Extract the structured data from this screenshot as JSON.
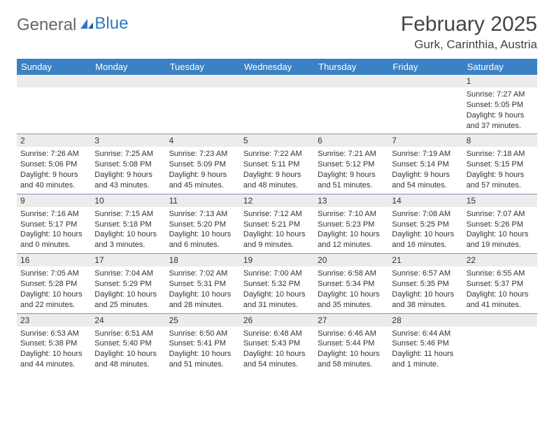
{
  "brand": {
    "part1": "General",
    "part2": "Blue"
  },
  "title": "February 2025",
  "location": "Gurk, Carinthia, Austria",
  "colors": {
    "header_bg": "#3b82c4",
    "header_text": "#ffffff",
    "daynum_bg": "#ececec",
    "row_border": "#7a94b0",
    "brand_gray": "#666666",
    "brand_blue": "#2f79c2",
    "text": "#333333",
    "background": "#ffffff"
  },
  "font": {
    "family": "Arial",
    "title_size_pt": 22,
    "location_size_pt": 13,
    "header_size_pt": 10,
    "body_size_pt": 8
  },
  "day_names": [
    "Sunday",
    "Monday",
    "Tuesday",
    "Wednesday",
    "Thursday",
    "Friday",
    "Saturday"
  ],
  "weeks": [
    [
      {
        "n": "",
        "sr": "",
        "ss": "",
        "dl": ""
      },
      {
        "n": "",
        "sr": "",
        "ss": "",
        "dl": ""
      },
      {
        "n": "",
        "sr": "",
        "ss": "",
        "dl": ""
      },
      {
        "n": "",
        "sr": "",
        "ss": "",
        "dl": ""
      },
      {
        "n": "",
        "sr": "",
        "ss": "",
        "dl": ""
      },
      {
        "n": "",
        "sr": "",
        "ss": "",
        "dl": ""
      },
      {
        "n": "1",
        "sr": "Sunrise: 7:27 AM",
        "ss": "Sunset: 5:05 PM",
        "dl": "Daylight: 9 hours and 37 minutes."
      }
    ],
    [
      {
        "n": "2",
        "sr": "Sunrise: 7:26 AM",
        "ss": "Sunset: 5:06 PM",
        "dl": "Daylight: 9 hours and 40 minutes."
      },
      {
        "n": "3",
        "sr": "Sunrise: 7:25 AM",
        "ss": "Sunset: 5:08 PM",
        "dl": "Daylight: 9 hours and 43 minutes."
      },
      {
        "n": "4",
        "sr": "Sunrise: 7:23 AM",
        "ss": "Sunset: 5:09 PM",
        "dl": "Daylight: 9 hours and 45 minutes."
      },
      {
        "n": "5",
        "sr": "Sunrise: 7:22 AM",
        "ss": "Sunset: 5:11 PM",
        "dl": "Daylight: 9 hours and 48 minutes."
      },
      {
        "n": "6",
        "sr": "Sunrise: 7:21 AM",
        "ss": "Sunset: 5:12 PM",
        "dl": "Daylight: 9 hours and 51 minutes."
      },
      {
        "n": "7",
        "sr": "Sunrise: 7:19 AM",
        "ss": "Sunset: 5:14 PM",
        "dl": "Daylight: 9 hours and 54 minutes."
      },
      {
        "n": "8",
        "sr": "Sunrise: 7:18 AM",
        "ss": "Sunset: 5:15 PM",
        "dl": "Daylight: 9 hours and 57 minutes."
      }
    ],
    [
      {
        "n": "9",
        "sr": "Sunrise: 7:16 AM",
        "ss": "Sunset: 5:17 PM",
        "dl": "Daylight: 10 hours and 0 minutes."
      },
      {
        "n": "10",
        "sr": "Sunrise: 7:15 AM",
        "ss": "Sunset: 5:18 PM",
        "dl": "Daylight: 10 hours and 3 minutes."
      },
      {
        "n": "11",
        "sr": "Sunrise: 7:13 AM",
        "ss": "Sunset: 5:20 PM",
        "dl": "Daylight: 10 hours and 6 minutes."
      },
      {
        "n": "12",
        "sr": "Sunrise: 7:12 AM",
        "ss": "Sunset: 5:21 PM",
        "dl": "Daylight: 10 hours and 9 minutes."
      },
      {
        "n": "13",
        "sr": "Sunrise: 7:10 AM",
        "ss": "Sunset: 5:23 PM",
        "dl": "Daylight: 10 hours and 12 minutes."
      },
      {
        "n": "14",
        "sr": "Sunrise: 7:08 AM",
        "ss": "Sunset: 5:25 PM",
        "dl": "Daylight: 10 hours and 16 minutes."
      },
      {
        "n": "15",
        "sr": "Sunrise: 7:07 AM",
        "ss": "Sunset: 5:26 PM",
        "dl": "Daylight: 10 hours and 19 minutes."
      }
    ],
    [
      {
        "n": "16",
        "sr": "Sunrise: 7:05 AM",
        "ss": "Sunset: 5:28 PM",
        "dl": "Daylight: 10 hours and 22 minutes."
      },
      {
        "n": "17",
        "sr": "Sunrise: 7:04 AM",
        "ss": "Sunset: 5:29 PM",
        "dl": "Daylight: 10 hours and 25 minutes."
      },
      {
        "n": "18",
        "sr": "Sunrise: 7:02 AM",
        "ss": "Sunset: 5:31 PM",
        "dl": "Daylight: 10 hours and 28 minutes."
      },
      {
        "n": "19",
        "sr": "Sunrise: 7:00 AM",
        "ss": "Sunset: 5:32 PM",
        "dl": "Daylight: 10 hours and 31 minutes."
      },
      {
        "n": "20",
        "sr": "Sunrise: 6:58 AM",
        "ss": "Sunset: 5:34 PM",
        "dl": "Daylight: 10 hours and 35 minutes."
      },
      {
        "n": "21",
        "sr": "Sunrise: 6:57 AM",
        "ss": "Sunset: 5:35 PM",
        "dl": "Daylight: 10 hours and 38 minutes."
      },
      {
        "n": "22",
        "sr": "Sunrise: 6:55 AM",
        "ss": "Sunset: 5:37 PM",
        "dl": "Daylight: 10 hours and 41 minutes."
      }
    ],
    [
      {
        "n": "23",
        "sr": "Sunrise: 6:53 AM",
        "ss": "Sunset: 5:38 PM",
        "dl": "Daylight: 10 hours and 44 minutes."
      },
      {
        "n": "24",
        "sr": "Sunrise: 6:51 AM",
        "ss": "Sunset: 5:40 PM",
        "dl": "Daylight: 10 hours and 48 minutes."
      },
      {
        "n": "25",
        "sr": "Sunrise: 6:50 AM",
        "ss": "Sunset: 5:41 PM",
        "dl": "Daylight: 10 hours and 51 minutes."
      },
      {
        "n": "26",
        "sr": "Sunrise: 6:48 AM",
        "ss": "Sunset: 5:43 PM",
        "dl": "Daylight: 10 hours and 54 minutes."
      },
      {
        "n": "27",
        "sr": "Sunrise: 6:46 AM",
        "ss": "Sunset: 5:44 PM",
        "dl": "Daylight: 10 hours and 58 minutes."
      },
      {
        "n": "28",
        "sr": "Sunrise: 6:44 AM",
        "ss": "Sunset: 5:46 PM",
        "dl": "Daylight: 11 hours and 1 minute."
      },
      {
        "n": "",
        "sr": "",
        "ss": "",
        "dl": ""
      }
    ]
  ]
}
